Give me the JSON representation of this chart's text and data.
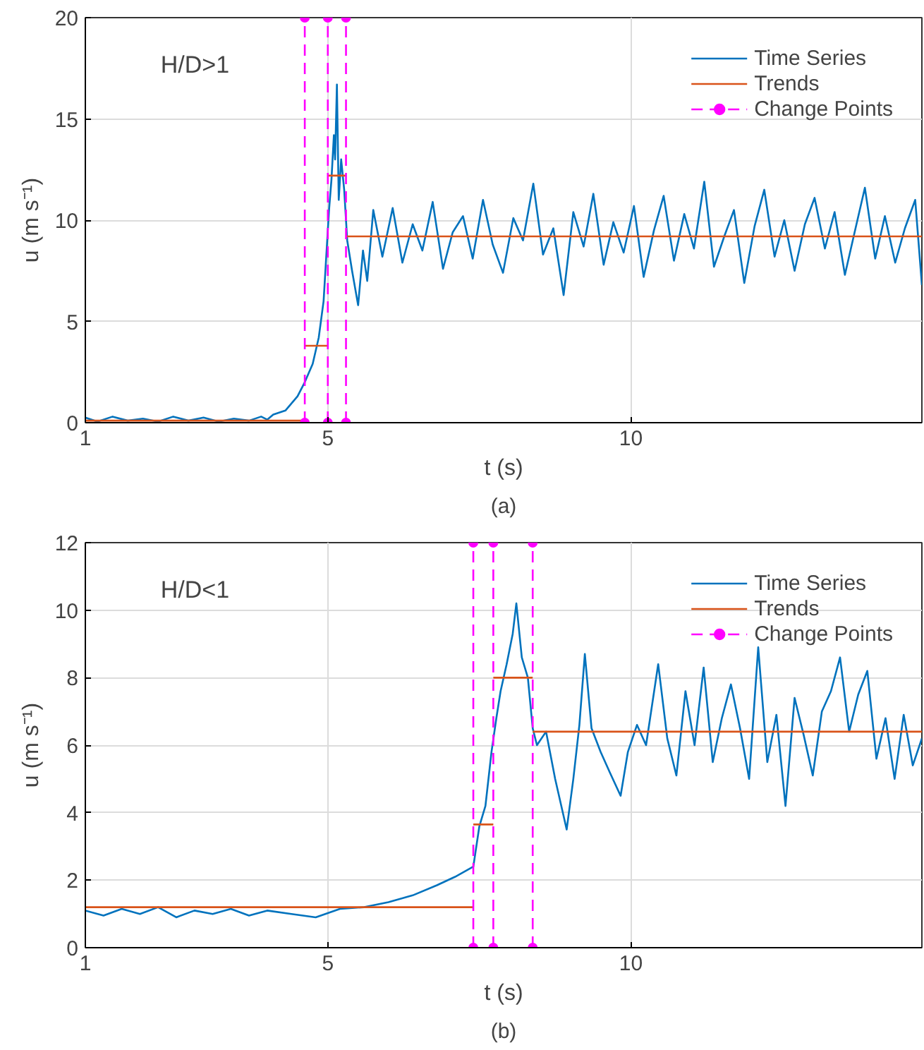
{
  "chart_data": [
    {
      "type": "line",
      "xlabel": "t (s)",
      "ylabel": "u (m s⁻¹)",
      "annotations": [
        "H/D>1",
        "(a)"
      ],
      "xlim": [
        1,
        14.8
      ],
      "xticks": [
        1,
        5,
        10
      ],
      "ylim": [
        0,
        20
      ],
      "yticks": [
        0,
        5,
        10,
        15,
        20
      ],
      "grid": true,
      "legend": "top right",
      "series": [
        {
          "name": "Time Series",
          "color": "#0072bd",
          "x": [
            1,
            1.2,
            1.45,
            1.7,
            1.95,
            2.2,
            2.45,
            2.7,
            2.95,
            3.2,
            3.45,
            3.7,
            3.9,
            4.0,
            4.1,
            4.3,
            4.5,
            4.62,
            4.75,
            4.85,
            4.93,
            4.98,
            5.02,
            5.06,
            5.1,
            5.12,
            5.15,
            5.18,
            5.22,
            5.27,
            5.32,
            5.4,
            5.5,
            5.58,
            5.65,
            5.75,
            5.9,
            6.07,
            6.23,
            6.4,
            6.56,
            6.73,
            6.9,
            7.06,
            7.23,
            7.39,
            7.56,
            7.72,
            7.89,
            8.06,
            8.22,
            8.39,
            8.55,
            8.72,
            8.89,
            9.05,
            9.22,
            9.38,
            9.55,
            9.71,
            9.88,
            10.05,
            10.21,
            10.38,
            10.54,
            10.71,
            10.88,
            11.04,
            11.21,
            11.37,
            11.54,
            11.7,
            11.87,
            12.04,
            12.2,
            12.37,
            12.53,
            12.7,
            12.87,
            13.03,
            13.2,
            13.36,
            13.53,
            13.69,
            13.86,
            14.03,
            14.19,
            14.36,
            14.52,
            14.69,
            14.8
          ],
          "values": [
            0.25,
            0.05,
            0.3,
            0.1,
            0.2,
            0.05,
            0.3,
            0.1,
            0.25,
            0.05,
            0.2,
            0.1,
            0.3,
            0.15,
            0.4,
            0.6,
            1.3,
            2.0,
            2.9,
            4.2,
            6.0,
            8.5,
            10.5,
            12.0,
            14.2,
            13.0,
            16.7,
            11.0,
            13.0,
            11.5,
            9.0,
            7.5,
            5.8,
            8.5,
            7.0,
            10.5,
            8.2,
            10.6,
            7.9,
            9.8,
            8.5,
            10.9,
            7.6,
            9.4,
            10.2,
            8.1,
            11.0,
            8.8,
            7.4,
            10.1,
            9.0,
            11.8,
            8.3,
            9.6,
            6.3,
            10.4,
            8.7,
            11.3,
            7.8,
            9.9,
            8.4,
            10.7,
            7.2,
            9.5,
            11.2,
            8.0,
            10.3,
            8.6,
            11.9,
            7.7,
            9.2,
            10.5,
            6.9,
            9.7,
            11.5,
            8.2,
            10.0,
            7.5,
            9.8,
            11.1,
            8.6,
            10.4,
            7.3,
            9.4,
            11.6,
            8.1,
            10.2,
            7.9,
            9.6,
            11.0,
            6.8
          ]
        },
        {
          "name": "Trends",
          "color": "#d95319",
          "x": [
            1,
            4.62,
            null,
            4.62,
            5.0,
            null,
            5.0,
            5.3,
            null,
            5.3,
            14.8
          ],
          "values": [
            0.1,
            0.1,
            null,
            3.8,
            3.8,
            null,
            12.2,
            12.2,
            null,
            9.2,
            9.2
          ]
        },
        {
          "name": "Change Points",
          "color": "#ff00ff",
          "line_style": "dashed",
          "marker": "circle",
          "x": [
            4.62,
            4.62,
            null,
            5.0,
            5.0,
            null,
            5.3,
            5.3
          ],
          "values": [
            0,
            20,
            null,
            0,
            20,
            null,
            0,
            20
          ]
        }
      ]
    },
    {
      "type": "line",
      "xlabel": "t (s)",
      "ylabel": "u (m s⁻¹)",
      "annotations": [
        "H/D<1",
        "(b)"
      ],
      "xlim": [
        1,
        14.8
      ],
      "xticks": [
        1,
        5,
        10
      ],
      "ylim": [
        0,
        12
      ],
      "yticks": [
        0,
        2,
        4,
        6,
        8,
        10,
        12
      ],
      "grid": true,
      "legend": "top right",
      "series": [
        {
          "name": "Time Series",
          "color": "#0072bd",
          "x": [
            1,
            1.3,
            1.6,
            1.9,
            2.2,
            2.5,
            2.8,
            3.1,
            3.4,
            3.7,
            4.0,
            4.4,
            4.8,
            5.2,
            5.6,
            6.0,
            6.4,
            6.8,
            7.1,
            7.4,
            7.5,
            7.6,
            7.7,
            7.78,
            7.85,
            7.95,
            8.05,
            8.11,
            8.2,
            8.3,
            8.38,
            8.45,
            8.6,
            8.75,
            8.94,
            9.05,
            9.15,
            9.24,
            9.35,
            9.5,
            9.65,
            9.83,
            9.95,
            10.1,
            10.25,
            10.45,
            10.6,
            10.75,
            10.9,
            11.05,
            11.2,
            11.35,
            11.5,
            11.65,
            11.8,
            11.95,
            12.1,
            12.25,
            12.4,
            12.55,
            12.7,
            12.85,
            13.0,
            13.15,
            13.3,
            13.45,
            13.6,
            13.75,
            13.9,
            14.05,
            14.2,
            14.35,
            14.5,
            14.65,
            14.8
          ],
          "values": [
            1.1,
            0.95,
            1.15,
            1.0,
            1.2,
            0.9,
            1.1,
            1.0,
            1.15,
            0.95,
            1.1,
            1.0,
            0.9,
            1.15,
            1.2,
            1.35,
            1.55,
            1.85,
            2.1,
            2.4,
            3.6,
            4.2,
            5.8,
            6.8,
            7.6,
            8.4,
            9.3,
            10.2,
            8.6,
            8.0,
            6.5,
            6.0,
            6.4,
            5.0,
            3.5,
            5.0,
            6.6,
            8.7,
            6.5,
            5.8,
            5.2,
            4.5,
            5.8,
            6.6,
            6.0,
            8.4,
            6.2,
            5.1,
            7.6,
            6.0,
            8.3,
            5.5,
            6.8,
            7.8,
            6.5,
            5.0,
            8.9,
            5.5,
            6.9,
            4.2,
            7.4,
            6.3,
            5.1,
            7.0,
            7.6,
            8.6,
            6.4,
            7.5,
            8.2,
            5.6,
            6.8,
            5.0,
            6.9,
            5.4,
            6.2
          ]
        },
        {
          "name": "Trends",
          "color": "#d95319",
          "x": [
            1,
            7.4,
            null,
            7.4,
            7.73,
            null,
            7.73,
            8.38,
            null,
            8.38,
            14.8
          ],
          "values": [
            1.2,
            1.2,
            null,
            3.65,
            3.65,
            null,
            8.0,
            8.0,
            null,
            6.4,
            6.4
          ]
        },
        {
          "name": "Change Points",
          "color": "#ff00ff",
          "line_style": "dashed",
          "marker": "circle",
          "x": [
            7.4,
            7.4,
            null,
            7.73,
            7.73,
            null,
            8.38,
            8.38
          ],
          "values": [
            0,
            12,
            null,
            0,
            12,
            null,
            0,
            12
          ]
        }
      ]
    }
  ]
}
